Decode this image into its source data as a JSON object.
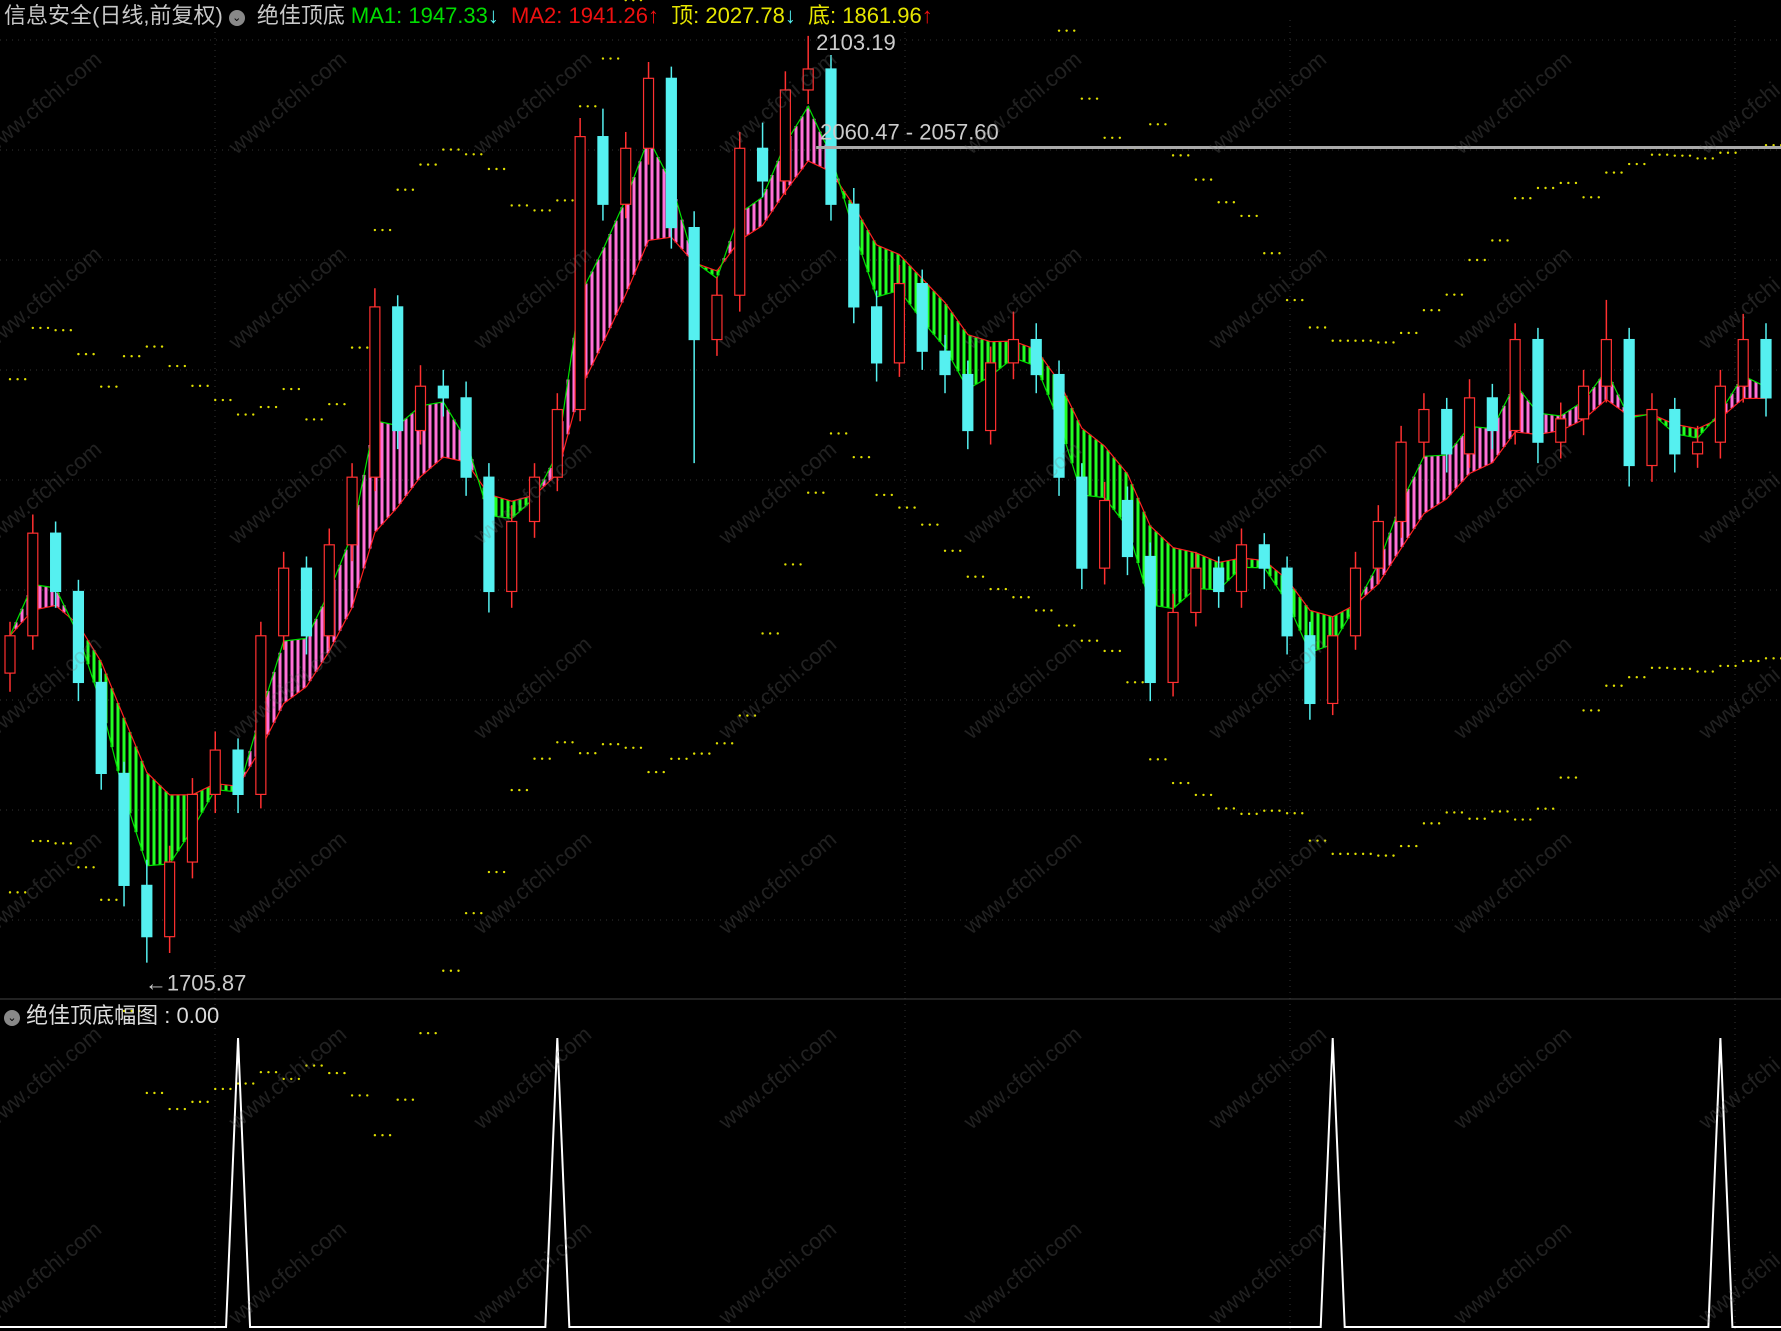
{
  "header": {
    "title": "信息安全(日线,前复权)",
    "indicator": "绝佳顶底",
    "ma1": {
      "label": "MA1: 1947.33",
      "arrow": "↓"
    },
    "ma2": {
      "label": "MA2: 1941.26",
      "arrow": "↑"
    },
    "top": {
      "label": "顶: 2027.78",
      "arrow": "↓"
    },
    "bottom": {
      "label": "底: 1861.96",
      "arrow": "↑"
    }
  },
  "sub_header": {
    "label": "绝佳顶底幅图 : 0.00"
  },
  "watermark": "www.cfchi.com",
  "colors": {
    "up": "#ff3030",
    "down": "#55f0f0",
    "ma1": "#00e000",
    "ma2": "#ff2020",
    "fill_up": "#ff70d8",
    "fill_down": "#22ff22",
    "band": "#e0e000",
    "ma1_text": "#00dd00",
    "ma2_text": "#ee1010",
    "top_text": "#e6e600"
  },
  "chart_data": [
    {
      "type": "candlestick",
      "ylim": [
        1692,
        2110
      ],
      "grid": true,
      "annotations": {
        "high": "2103.19",
        "low": "1705.87",
        "line_label": "2060.47 - 2057.60",
        "line_value": 2060.47
      },
      "candles": [
        [
          1830,
          1852,
          1822,
          1846
        ],
        [
          1846,
          1898,
          1840,
          1890
        ],
        [
          1890,
          1895,
          1858,
          1865
        ],
        [
          1865,
          1870,
          1818,
          1826
        ],
        [
          1826,
          1832,
          1780,
          1787
        ],
        [
          1787,
          1792,
          1730,
          1739
        ],
        [
          1739,
          1750,
          1705.87,
          1717
        ],
        [
          1717,
          1756,
          1710,
          1749
        ],
        [
          1749,
          1785,
          1742,
          1778
        ],
        [
          1778,
          1805,
          1770,
          1797
        ],
        [
          1797,
          1802,
          1770,
          1778
        ],
        [
          1778,
          1852,
          1772,
          1846
        ],
        [
          1846,
          1882,
          1840,
          1875
        ],
        [
          1875,
          1880,
          1838,
          1846
        ],
        [
          1846,
          1892,
          1840,
          1885
        ],
        [
          1885,
          1920,
          1878,
          1914
        ],
        [
          1914,
          1995,
          1908,
          1987
        ],
        [
          1987,
          1992,
          1926,
          1934
        ],
        [
          1934,
          1962,
          1928,
          1953
        ],
        [
          1953,
          1960,
          1940,
          1948
        ],
        [
          1948,
          1955,
          1906,
          1914
        ],
        [
          1914,
          1920,
          1856,
          1865
        ],
        [
          1865,
          1902,
          1858,
          1895
        ],
        [
          1895,
          1920,
          1888,
          1914
        ],
        [
          1914,
          1950,
          1908,
          1943
        ],
        [
          1943,
          2068,
          1938,
          2060
        ],
        [
          2060,
          2072,
          2024,
          2031
        ],
        [
          2031,
          2062,
          2025,
          2055
        ],
        [
          2055,
          2092,
          2048,
          2085
        ],
        [
          2085,
          2090,
          2012,
          2021
        ],
        [
          2021,
          2028,
          1920,
          1973
        ],
        [
          1973,
          2000,
          1966,
          1992
        ],
        [
          1992,
          2062,
          1985,
          2055
        ],
        [
          2055,
          2066,
          2034,
          2041
        ],
        [
          2041,
          2088,
          2035,
          2080
        ],
        [
          2080,
          2103.19,
          2074,
          2089
        ],
        [
          2089,
          2095,
          2024,
          2031
        ],
        [
          2031,
          2038,
          1980,
          1987
        ],
        [
          1987,
          1994,
          1955,
          1963
        ],
        [
          1963,
          2005,
          1957,
          1997
        ],
        [
          1997,
          2003,
          1960,
          1968
        ],
        [
          1968,
          1975,
          1950,
          1958
        ],
        [
          1958,
          1964,
          1926,
          1934
        ],
        [
          1934,
          1970,
          1928,
          1963
        ],
        [
          1963,
          1985,
          1956,
          1973
        ],
        [
          1973,
          1980,
          1950,
          1958
        ],
        [
          1958,
          1964,
          1906,
          1914
        ],
        [
          1914,
          1920,
          1866,
          1875
        ],
        [
          1875,
          1912,
          1868,
          1904
        ],
        [
          1904,
          1910,
          1872,
          1880
        ],
        [
          1880,
          1886,
          1818,
          1826
        ],
        [
          1826,
          1864,
          1820,
          1856
        ],
        [
          1856,
          1882,
          1850,
          1875
        ],
        [
          1875,
          1880,
          1858,
          1865
        ],
        [
          1865,
          1892,
          1858,
          1885
        ],
        [
          1885,
          1890,
          1866,
          1875
        ],
        [
          1875,
          1880,
          1838,
          1846
        ],
        [
          1846,
          1852,
          1810,
          1817
        ],
        [
          1817,
          1854,
          1812,
          1846
        ],
        [
          1846,
          1882,
          1840,
          1875
        ],
        [
          1875,
          1902,
          1868,
          1895
        ],
        [
          1895,
          1936,
          1888,
          1929
        ],
        [
          1929,
          1950,
          1922,
          1943
        ],
        [
          1943,
          1948,
          1916,
          1924
        ],
        [
          1924,
          1956,
          1918,
          1948
        ],
        [
          1948,
          1954,
          1926,
          1934
        ],
        [
          1934,
          1980,
          1928,
          1973
        ],
        [
          1973,
          1978,
          1920,
          1929
        ],
        [
          1929,
          1946,
          1922,
          1939
        ],
        [
          1939,
          1960,
          1932,
          1953
        ],
        [
          1953,
          1990,
          1946,
          1973
        ],
        [
          1973,
          1978,
          1910,
          1919
        ],
        [
          1919,
          1950,
          1912,
          1943
        ],
        [
          1943,
          1948,
          1916,
          1924
        ],
        [
          1924,
          1936,
          1918,
          1929
        ],
        [
          1929,
          1960,
          1922,
          1953
        ],
        [
          1953,
          1984,
          1946,
          1973
        ],
        [
          1973,
          1980,
          1940,
          1948
        ]
      ]
    },
    {
      "type": "line",
      "title": "绝佳顶底幅图",
      "ylim": [
        0,
        100
      ],
      "spike_indices": [
        10,
        24,
        58,
        75
      ],
      "spike_value": 100,
      "current": 0.0
    }
  ]
}
